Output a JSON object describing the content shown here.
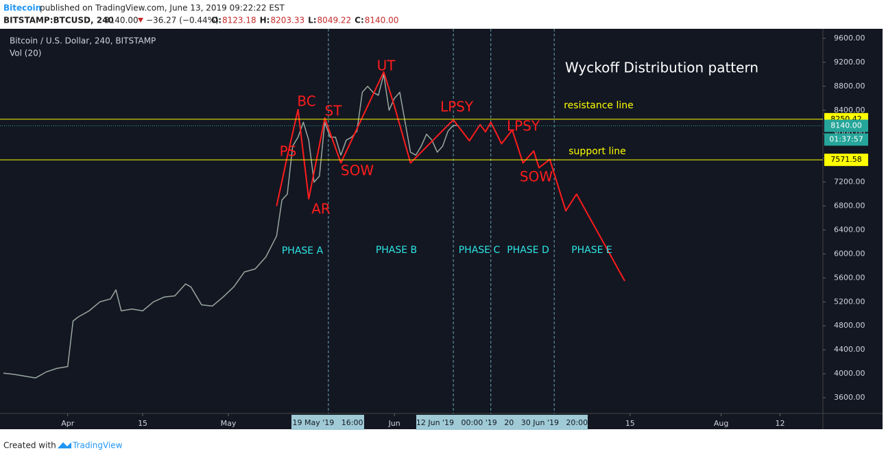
{
  "header": {
    "author": "Bitecoin",
    "published": "published on TradingView.com, June 13, 2019 09:22:22 EST",
    "symbol": "BITSTAMP:BTCUSD, 240",
    "price": "8140.00",
    "change": "−36.27 (−0.44%)",
    "ohlc": [
      {
        "key": "O:",
        "value": "8123.18"
      },
      {
        "key": "H:",
        "value": "8203.33"
      },
      {
        "key": "L:",
        "value": "8049.22"
      },
      {
        "key": "C:",
        "value": "8140.00"
      }
    ]
  },
  "chart_data": {
    "type": "line",
    "title": "Bitcoin / U.S. Dollar, 240, BITSTAMP",
    "subtitle": "Vol (20)",
    "annotation_title": "Wyckoff Distribution pattern",
    "xlim": [
      "2019-03-20",
      "2019-08-20"
    ],
    "ylim": [
      3337,
      9760
    ],
    "xticks": [
      {
        "value": "2019-04-01",
        "label": "Apr"
      },
      {
        "value": "2019-04-15",
        "label": "15"
      },
      {
        "value": "2019-05-01",
        "label": "May"
      },
      {
        "value": "2019-06-01",
        "label": "Jun"
      },
      {
        "value": "2019-07-15",
        "label": "15"
      },
      {
        "value": "2019-08-01",
        "label": "Aug"
      },
      {
        "value": "2019-08-12",
        "label": "12"
      }
    ],
    "yticks": [
      {
        "value": 3600,
        "label": "3600.00"
      },
      {
        "value": 4000,
        "label": "4000.00"
      },
      {
        "value": 4400,
        "label": "4400.00"
      },
      {
        "value": 4800,
        "label": "4800.00"
      },
      {
        "value": 5200,
        "label": "5200.00"
      },
      {
        "value": 5600,
        "label": "5600.00"
      },
      {
        "value": 6000,
        "label": "6000.00"
      },
      {
        "value": 6400,
        "label": "6400.00"
      },
      {
        "value": 6800,
        "label": "6800.00"
      },
      {
        "value": 7200,
        "label": "7200.00"
      },
      {
        "value": 7600,
        "label": "7600.00"
      },
      {
        "value": 8000,
        "label": "8000.00"
      },
      {
        "value": 8400,
        "label": "8400.00"
      },
      {
        "value": 8800,
        "label": "8800.00"
      },
      {
        "value": 9200,
        "label": "9200.00"
      },
      {
        "value": 9600,
        "label": "9600.00"
      }
    ],
    "price": {
      "color": "#9aa89f",
      "x": [
        "2019-03-20",
        "2019-03-22",
        "2019-03-24",
        "2019-03-26",
        "2019-03-28",
        "2019-03-30",
        "2019-04-01",
        "2019-04-02",
        "2019-04-03",
        "2019-04-05",
        "2019-04-07",
        "2019-04-09",
        "2019-04-10",
        "2019-04-11",
        "2019-04-13",
        "2019-04-15",
        "2019-04-17",
        "2019-04-19",
        "2019-04-21",
        "2019-04-23",
        "2019-04-24",
        "2019-04-26",
        "2019-04-28",
        "2019-04-30",
        "2019-05-02",
        "2019-05-04",
        "2019-05-06",
        "2019-05-08",
        "2019-05-10",
        "2019-05-11",
        "2019-05-12",
        "2019-05-13",
        "2019-05-14",
        "2019-05-15",
        "2019-05-16",
        "2019-05-17",
        "2019-05-18",
        "2019-05-19",
        "2019-05-20",
        "2019-05-21",
        "2019-05-22",
        "2019-05-23",
        "2019-05-24",
        "2019-05-25",
        "2019-05-26",
        "2019-05-27",
        "2019-05-28",
        "2019-05-29",
        "2019-05-30",
        "2019-05-31",
        "2019-06-01",
        "2019-06-02",
        "2019-06-03",
        "2019-06-04",
        "2019-06-05",
        "2019-06-06",
        "2019-06-07",
        "2019-06-08",
        "2019-06-09",
        "2019-06-10",
        "2019-06-11",
        "2019-06-12",
        "2019-06-13"
      ],
      "values": [
        4010,
        3990,
        3960,
        3930,
        4030,
        4090,
        4120,
        4880,
        4950,
        5050,
        5200,
        5250,
        5400,
        5050,
        5080,
        5050,
        5200,
        5280,
        5300,
        5500,
        5450,
        5150,
        5130,
        5280,
        5450,
        5700,
        5750,
        5950,
        6300,
        6900,
        7000,
        7800,
        7950,
        8200,
        7900,
        7200,
        7300,
        8200,
        7950,
        7950,
        7650,
        7900,
        7950,
        8050,
        8700,
        8800,
        8700,
        8650,
        9000,
        8400,
        8600,
        8700,
        8200,
        7700,
        7650,
        7800,
        8000,
        7900,
        7700,
        7800,
        8050,
        8150,
        8140
      ]
    },
    "wyckoff_path": {
      "color": "#ff1c1c",
      "x": [
        "2019-05-10",
        "2019-05-12",
        "2019-05-14",
        "2019-05-16",
        "2019-05-19",
        "2019-05-22",
        "2019-05-30",
        "2019-06-01",
        "2019-06-04",
        "2019-06-12",
        "2019-06-15",
        "2019-06-17",
        "2019-06-18",
        "2019-06-19",
        "2019-06-21",
        "2019-06-23",
        "2019-06-25",
        "2019-06-27",
        "2019-06-28",
        "2019-06-30",
        "2019-07-03",
        "2019-07-05",
        "2019-07-14"
      ],
      "values": [
        6800,
        7630,
        8410,
        6920,
        8270,
        7520,
        9040,
        8470,
        7520,
        8240,
        7890,
        8160,
        8040,
        8200,
        7840,
        8070,
        7520,
        7720,
        7440,
        7580,
        6720,
        7000,
        5550
      ]
    },
    "price_lines": [
      {
        "value": 8250.42,
        "color": "#ffff00"
      },
      {
        "value": 7571.58,
        "color": "#ffff00"
      }
    ],
    "last_price": {
      "value": 8140,
      "label": "8140.00",
      "color": "#26a69a"
    },
    "countdown": "01:37:57",
    "phase_dividers": [
      "2019-05-19T16:00",
      "2019-06-12T00:00",
      "2019-06-19T00:00",
      "2019-06-30T20:00"
    ],
    "time_highlights": [
      "19 May '19   16:00",
      "12 Jun '19   00:00 '19   20   30 Jun '19   20:00"
    ],
    "labels": [
      {
        "text": "PS",
        "color": "#ff1c1c"
      },
      {
        "text": "BC",
        "color": "#ff1c1c"
      },
      {
        "text": "ST",
        "color": "#ff1c1c"
      },
      {
        "text": "AR",
        "color": "#ff1c1c"
      },
      {
        "text": "SOW",
        "color": "#ff1c1c"
      },
      {
        "text": "UT",
        "color": "#ff1c1c"
      },
      {
        "text": "LPSY",
        "color": "#ff1c1c"
      },
      {
        "text": "LPSY",
        "color": "#ff1c1c"
      },
      {
        "text": "SOW",
        "color": "#ff1c1c"
      },
      {
        "text": "PHASE A",
        "color": "#2ee6e6"
      },
      {
        "text": "PHASE B",
        "color": "#2ee6e6"
      },
      {
        "text": "PHASE C",
        "color": "#2ee6e6"
      },
      {
        "text": "PHASE D",
        "color": "#2ee6e6"
      },
      {
        "text": "PHASE E",
        "color": "#2ee6e6"
      },
      {
        "text": "resistance line",
        "color": "#ffff00"
      },
      {
        "text": "support line",
        "color": "#ffff00"
      }
    ]
  },
  "footer": {
    "text": "Created with",
    "brand": "TradingView"
  }
}
